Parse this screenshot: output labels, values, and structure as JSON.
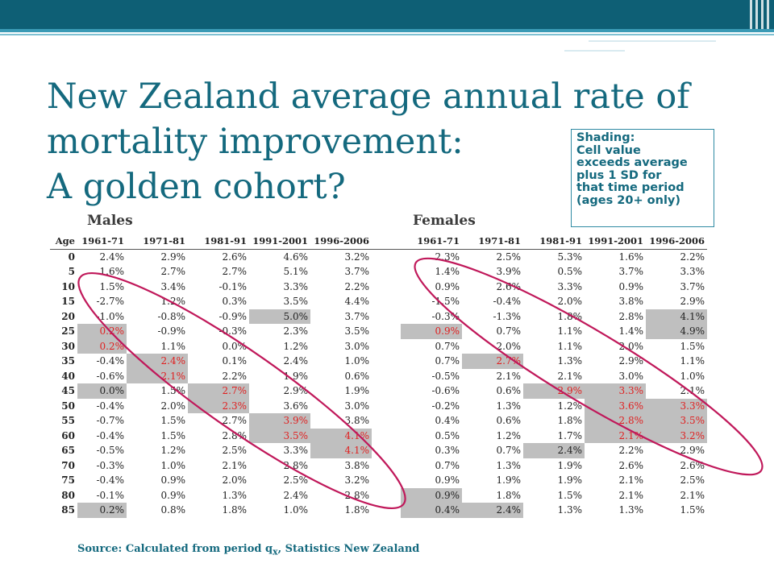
{
  "title_lines": [
    "New Zealand average annual rate of",
    "mortality improvement:",
    "A golden cohort?"
  ],
  "shading_note": [
    "Shading:",
    "Cell value",
    "exceeds average",
    "plus 1 SD for",
    "that time period",
    "(ages 20+ only)"
  ],
  "groups": {
    "males": "Males",
    "females": "Females"
  },
  "age_header": "Age",
  "periods": [
    "1961-71",
    "1971-81",
    "1981-91",
    "1991-2001",
    "1996-2006"
  ],
  "rows": [
    {
      "age": "0",
      "m": [
        "2.4%",
        "2.9%",
        "2.6%",
        "4.6%",
        "3.2%"
      ],
      "f": [
        "2.3%",
        "2.5%",
        "5.3%",
        "1.6%",
        "2.2%"
      ],
      "mh": [],
      "fh": [],
      "mr": [],
      "fr": []
    },
    {
      "age": "5",
      "m": [
        "1.6%",
        "2.7%",
        "2.7%",
        "5.1%",
        "3.7%"
      ],
      "f": [
        "1.4%",
        "3.9%",
        "0.5%",
        "3.7%",
        "3.3%"
      ],
      "mh": [],
      "fh": [],
      "mr": [],
      "fr": []
    },
    {
      "age": "10",
      "m": [
        "1.5%",
        "3.4%",
        "-0.1%",
        "3.3%",
        "2.2%"
      ],
      "f": [
        "0.9%",
        "2.6%",
        "3.3%",
        "0.9%",
        "3.7%"
      ],
      "mh": [],
      "fh": [],
      "mr": [],
      "fr": []
    },
    {
      "age": "15",
      "m": [
        "-2.7%",
        "1.2%",
        "0.3%",
        "3.5%",
        "4.4%"
      ],
      "f": [
        "-1.5%",
        "-0.4%",
        "2.0%",
        "3.8%",
        "2.9%"
      ],
      "mh": [],
      "fh": [],
      "mr": [],
      "fr": []
    },
    {
      "age": "20",
      "m": [
        "-1.0%",
        "-0.8%",
        "-0.9%",
        "5.0%",
        "3.7%"
      ],
      "f": [
        "-0.3%",
        "-1.3%",
        "1.8%",
        "2.8%",
        "4.1%"
      ],
      "mh": [
        3
      ],
      "fh": [
        4
      ],
      "mr": [],
      "fr": []
    },
    {
      "age": "25",
      "m": [
        "0.2%",
        "-0.9%",
        "-0.3%",
        "2.3%",
        "3.5%"
      ],
      "f": [
        "0.9%",
        "0.7%",
        "1.1%",
        "1.4%",
        "4.9%"
      ],
      "mh": [
        0
      ],
      "fh": [
        0,
        4
      ],
      "mr": [
        0
      ],
      "fr": [
        0
      ]
    },
    {
      "age": "30",
      "m": [
        "0.2%",
        "1.1%",
        "0.0%",
        "1.2%",
        "3.0%"
      ],
      "f": [
        "0.7%",
        "2.0%",
        "1.1%",
        "2.0%",
        "1.5%"
      ],
      "mh": [
        0
      ],
      "fh": [],
      "mr": [
        0
      ],
      "fr": []
    },
    {
      "age": "35",
      "m": [
        "-0.4%",
        "2.4%",
        "0.1%",
        "2.4%",
        "1.0%"
      ],
      "f": [
        "0.7%",
        "2.7%",
        "1.3%",
        "2.9%",
        "1.1%"
      ],
      "mh": [
        1
      ],
      "fh": [
        1
      ],
      "mr": [
        1
      ],
      "fr": [
        1
      ]
    },
    {
      "age": "40",
      "m": [
        "-0.6%",
        "2.1%",
        "2.2%",
        "1.9%",
        "0.6%"
      ],
      "f": [
        "-0.5%",
        "2.1%",
        "2.1%",
        "3.0%",
        "1.0%"
      ],
      "mh": [
        1
      ],
      "fh": [],
      "mr": [
        1
      ],
      "fr": []
    },
    {
      "age": "45",
      "m": [
        "0.0%",
        "1.5%",
        "2.7%",
        "2.9%",
        "1.9%"
      ],
      "f": [
        "-0.6%",
        "0.6%",
        "2.9%",
        "3.3%",
        "2.1%"
      ],
      "mh": [
        0,
        2
      ],
      "fh": [
        2,
        3
      ],
      "mr": [
        2
      ],
      "fr": [
        2,
        3
      ]
    },
    {
      "age": "50",
      "m": [
        "-0.4%",
        "2.0%",
        "2.3%",
        "3.6%",
        "3.0%"
      ],
      "f": [
        "-0.2%",
        "1.3%",
        "1.2%",
        "3.6%",
        "3.3%"
      ],
      "mh": [
        2
      ],
      "fh": [
        3,
        4
      ],
      "mr": [
        2
      ],
      "fr": [
        3,
        4
      ]
    },
    {
      "age": "55",
      "m": [
        "-0.7%",
        "1.5%",
        "2.7%",
        "3.9%",
        "3.8%"
      ],
      "f": [
        "0.4%",
        "0.6%",
        "1.8%",
        "2.8%",
        "3.5%"
      ],
      "mh": [
        3
      ],
      "fh": [
        3,
        4
      ],
      "mr": [
        3
      ],
      "fr": [
        3,
        4
      ]
    },
    {
      "age": "60",
      "m": [
        "-0.4%",
        "1.5%",
        "2.8%",
        "3.5%",
        "4.1%"
      ],
      "f": [
        "0.5%",
        "1.2%",
        "1.7%",
        "2.1%",
        "3.2%"
      ],
      "mh": [
        3,
        4
      ],
      "fh": [
        3,
        4
      ],
      "mr": [
        3,
        4
      ],
      "fr": [
        3,
        4
      ]
    },
    {
      "age": "65",
      "m": [
        "-0.5%",
        "1.2%",
        "2.5%",
        "3.3%",
        "4.1%"
      ],
      "f": [
        "0.3%",
        "0.7%",
        "2.4%",
        "2.2%",
        "2.9%"
      ],
      "mh": [
        4
      ],
      "fh": [
        2
      ],
      "mr": [
        4
      ],
      "fr": []
    },
    {
      "age": "70",
      "m": [
        "-0.3%",
        "1.0%",
        "2.1%",
        "2.8%",
        "3.8%"
      ],
      "f": [
        "0.7%",
        "1.3%",
        "1.9%",
        "2.6%",
        "2.6%"
      ],
      "mh": [],
      "fh": [],
      "mr": [],
      "fr": []
    },
    {
      "age": "75",
      "m": [
        "-0.4%",
        "0.9%",
        "2.0%",
        "2.5%",
        "3.2%"
      ],
      "f": [
        "0.9%",
        "1.9%",
        "1.9%",
        "2.1%",
        "2.5%"
      ],
      "mh": [],
      "fh": [],
      "mr": [],
      "fr": []
    },
    {
      "age": "80",
      "m": [
        "-0.1%",
        "0.9%",
        "1.3%",
        "2.4%",
        "2.8%"
      ],
      "f": [
        "0.9%",
        "1.8%",
        "1.5%",
        "2.1%",
        "2.1%"
      ],
      "mh": [],
      "fh": [
        0
      ],
      "mr": [],
      "fr": []
    },
    {
      "age": "85",
      "m": [
        "0.2%",
        "0.8%",
        "1.8%",
        "1.0%",
        "1.8%"
      ],
      "f": [
        "0.4%",
        "2.4%",
        "1.3%",
        "1.3%",
        "1.5%"
      ],
      "mh": [
        0
      ],
      "fh": [
        0,
        1
      ],
      "mr": [],
      "fr": []
    }
  ],
  "source": "Source: Calculated from period q",
  "source_sub": "x",
  "source_tail": ", Statistics New Zealand",
  "colors": {
    "title": "#14697e",
    "highlight": "#bfbfbf",
    "red_text": "#e02020",
    "ellipse": "#c0185a"
  }
}
